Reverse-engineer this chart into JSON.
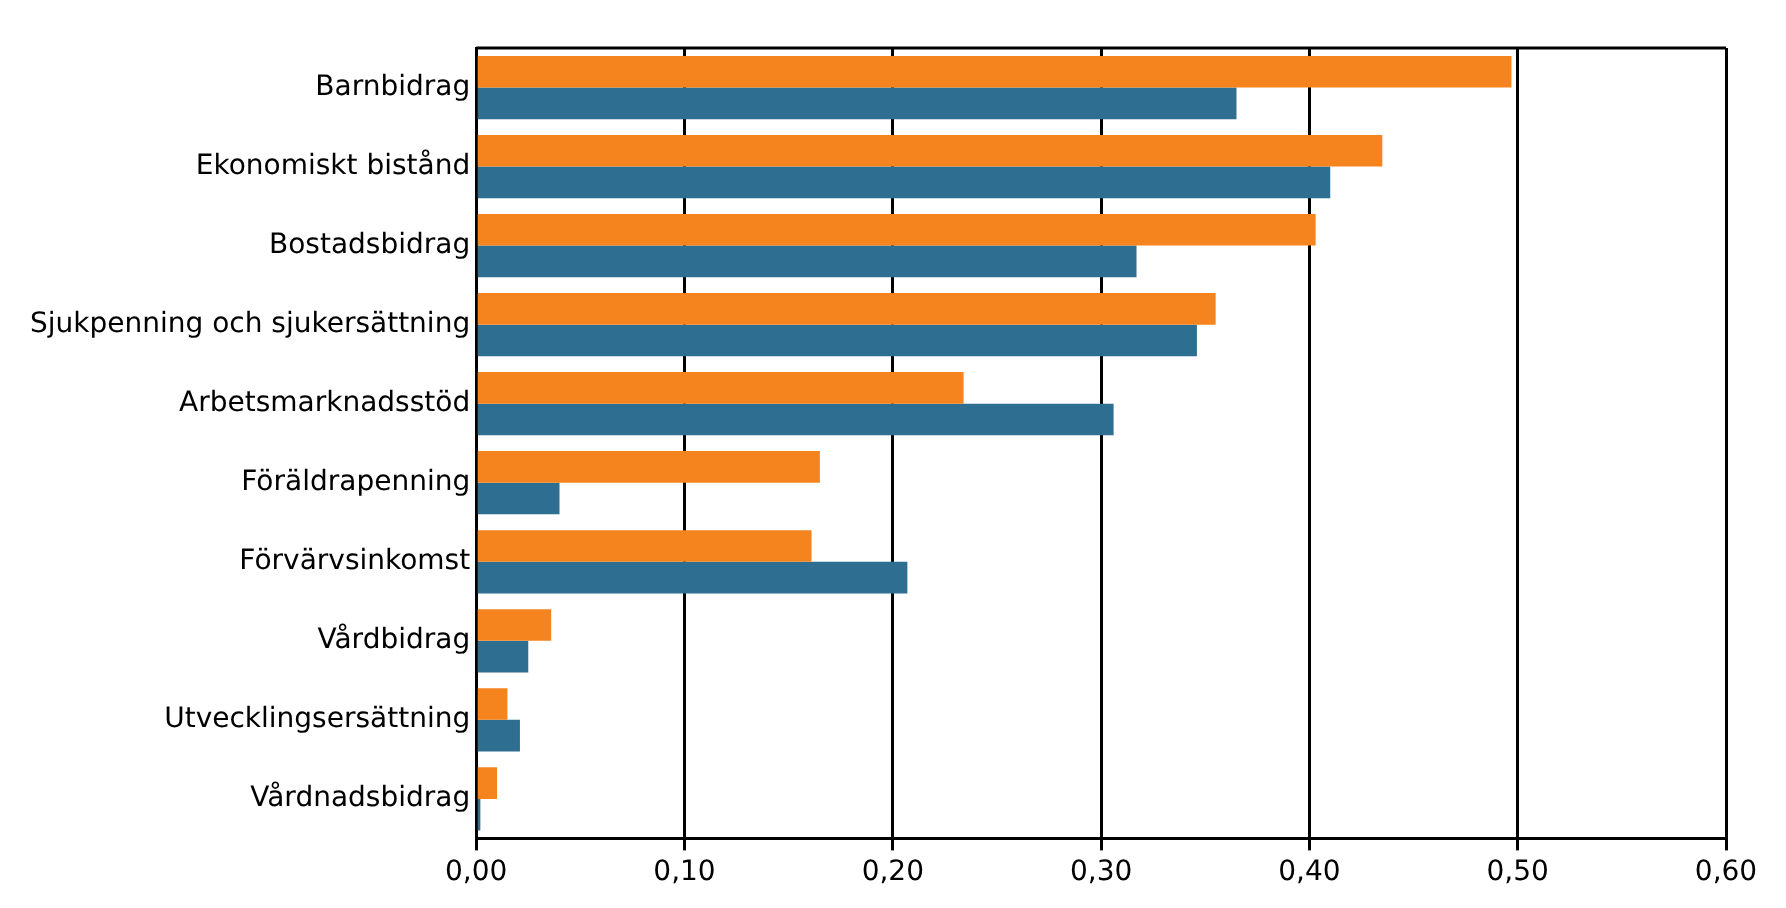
{
  "chart_data": {
    "type": "bar",
    "orientation": "horizontal",
    "categories": [
      "Barnbidrag",
      "Ekonomiskt bistånd",
      "Bostadsbidrag",
      "Sjukpenning och sjukersättning",
      "Arbetsmarknadsstöd",
      "Föräldrapenning",
      "Förvärvsinkomst",
      "Vårdbidrag",
      "Utvecklingsersättning",
      "Vårdnadsbidrag"
    ],
    "series": [
      {
        "color": "#f5841f",
        "values": [
          0.497,
          0.435,
          0.403,
          0.355,
          0.234,
          0.165,
          0.161,
          0.036,
          0.015,
          0.01
        ]
      },
      {
        "color": "#2e6e91",
        "values": [
          0.365,
          0.41,
          0.317,
          0.346,
          0.306,
          0.04,
          0.207,
          0.025,
          0.021,
          0.002
        ]
      }
    ],
    "xlim": [
      0,
      0.6
    ],
    "xticks": [
      {
        "value": 0,
        "label": "0,00"
      },
      {
        "value": 0.1,
        "label": "0,10"
      },
      {
        "value": 0.2,
        "label": "0,20"
      },
      {
        "value": 0.3,
        "label": "0,30"
      },
      {
        "value": 0.4,
        "label": "0,40"
      },
      {
        "value": 0.5,
        "label": "0,50"
      },
      {
        "value": 0.6,
        "label": "0,60"
      }
    ],
    "grid": "x",
    "legend": false
  }
}
